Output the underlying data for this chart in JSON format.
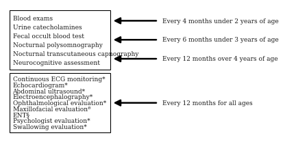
{
  "box1_items": [
    "Blood exams",
    "Urine catecholamines",
    "Fecal occult blood test",
    "Nocturnal polysomnography",
    "Nocturnal transcutaneous capnography",
    "Neurocognitive assessment"
  ],
  "box2_items": [
    "Continuous ECG monitoring*",
    "Echocardiogram*",
    "Abdominal ultrasound*",
    "Electroencephalography*",
    "Ophthalmological evaluation*",
    "Maxillofacial evaluationª",
    "ENT§",
    "Psychologist evaluation*",
    "Swallowing evaluation*"
  ],
  "arrows1": [
    "Every 4 months under 2 years of age",
    "Every 6 months under 3 years of age",
    "Every 12 months over 4 years of age"
  ],
  "arrows2": [
    "Every 12 months for all ages"
  ],
  "background_color": "#ffffff",
  "box_color": "#000000",
  "text_color": "#1a1a1a",
  "font_size": 6.5
}
